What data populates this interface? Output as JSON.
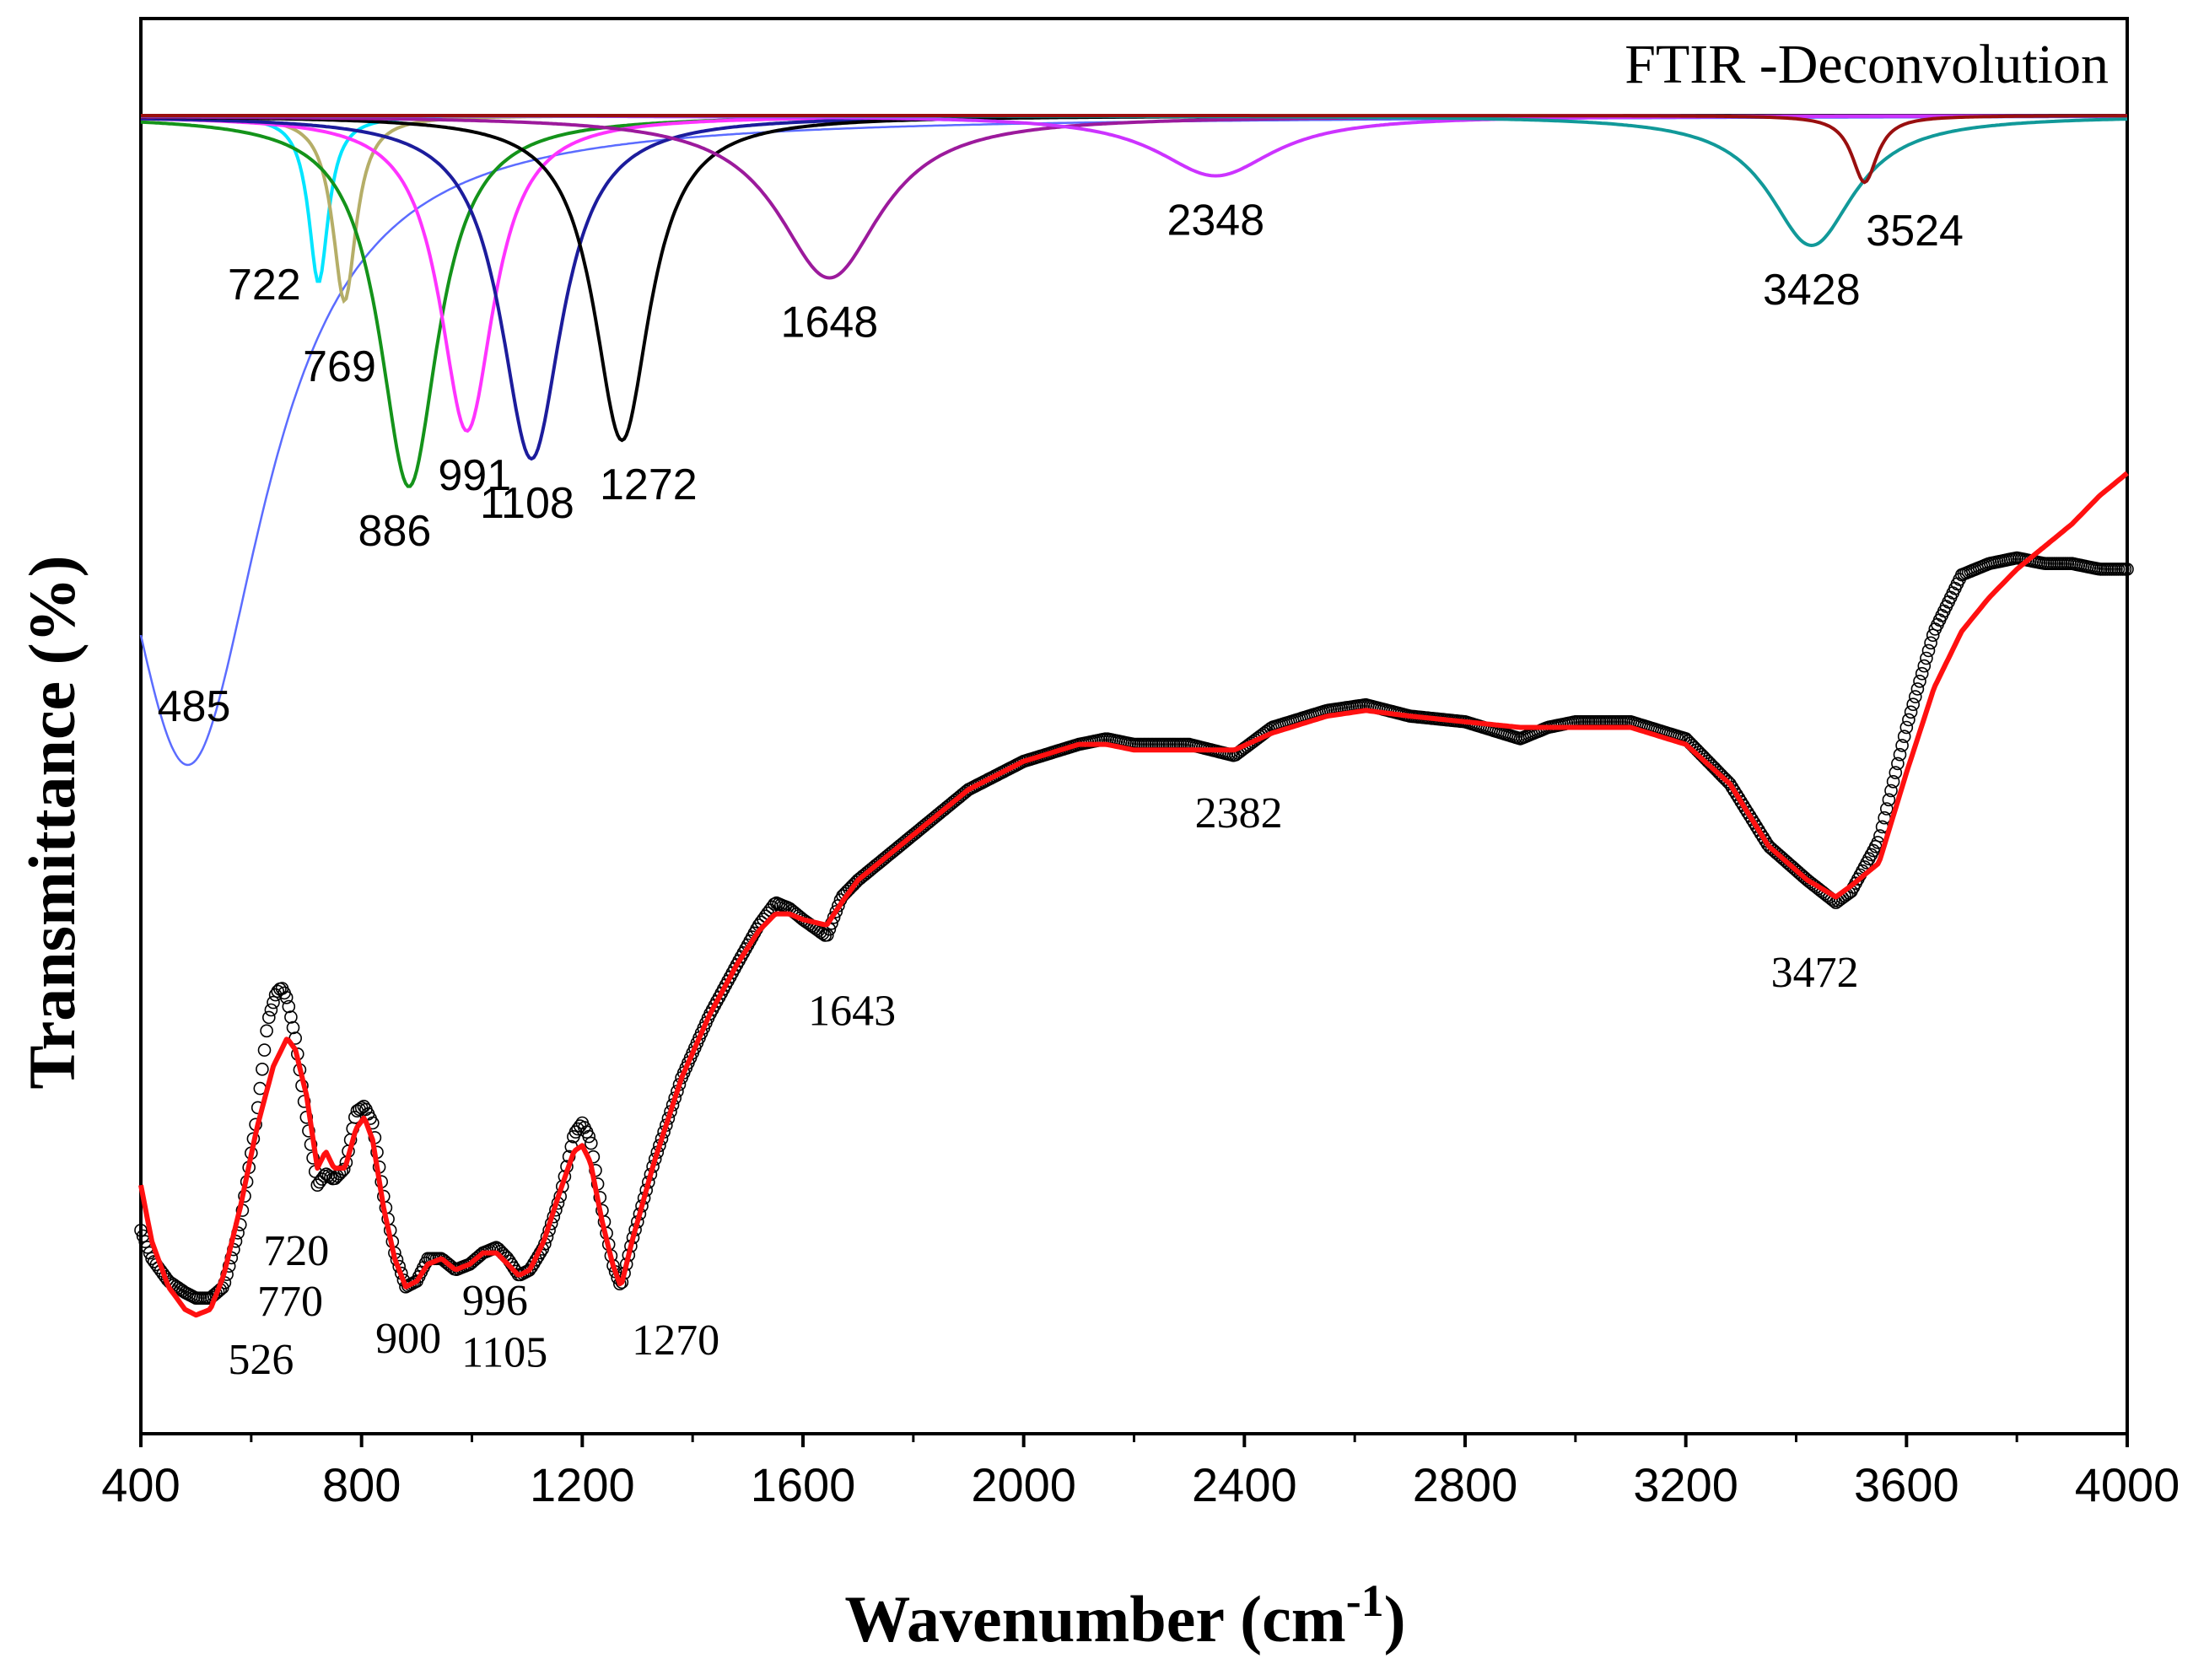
{
  "chart_data": {
    "type": "line",
    "title": "FTIR -Deconvolution",
    "xlabel": "Wavenumber (cm",
    "xlabel_sup": "-1",
    "xlabel_end": ")",
    "ylabel": "Transmittance (%)",
    "xlim": [
      400,
      4000
    ],
    "x_ticks": [
      "400",
      "800",
      "1200",
      "1600",
      "2000",
      "2400",
      "2800",
      "3200",
      "3600",
      "4000"
    ],
    "y_ticks_labeled": false,
    "grid": false,
    "deconvolution_peaks": [
      {
        "center": 485,
        "label": "485",
        "color": "#5b6cff",
        "half_width": 170,
        "depth": 0.7,
        "label_x": 430,
        "label_anchor": "start"
      },
      {
        "center": 722,
        "label": "722",
        "color": "#00e5ff",
        "half_width": 22,
        "depth": 0.18,
        "label_x": 690,
        "label_anchor": "end"
      },
      {
        "center": 769,
        "label": "769",
        "color": "#b5ae68",
        "half_width": 26,
        "depth": 0.2,
        "label_x": 760,
        "label_anchor": "middle"
      },
      {
        "center": 886,
        "label": "886",
        "color": "#14931a",
        "half_width": 65,
        "depth": 0.4,
        "label_x": 860,
        "label_anchor": "middle"
      },
      {
        "center": 991,
        "label": "991",
        "color": "#ff33ff",
        "half_width": 60,
        "depth": 0.34,
        "label_x": 1005,
        "label_anchor": "middle"
      },
      {
        "center": 1108,
        "label": "1108",
        "color": "#1c1c9c",
        "half_width": 68,
        "depth": 0.37,
        "label_x": 1100,
        "label_anchor": "middle"
      },
      {
        "center": 1272,
        "label": "1272",
        "color": "#000000",
        "half_width": 62,
        "depth": 0.35,
        "label_x": 1320,
        "label_anchor": "middle"
      },
      {
        "center": 1648,
        "label": "1648",
        "color": "#9c1a9c",
        "half_width": 115,
        "depth": 0.175,
        "label_x": 1648,
        "label_anchor": "middle"
      },
      {
        "center": 2348,
        "label": "2348",
        "color": "#cc33ff",
        "half_width": 130,
        "depth": 0.065,
        "label_x": 2348,
        "label_anchor": "middle"
      },
      {
        "center": 3428,
        "label": "3428",
        "color": "#119999",
        "half_width": 95,
        "depth": 0.14,
        "label_x": 3428,
        "label_anchor": "middle"
      },
      {
        "center": 3524,
        "label": "3524",
        "color": "#990f0f",
        "half_width": 28,
        "depth": 0.072,
        "label_x": 3615,
        "label_anchor": "middle"
      }
    ],
    "measured_series": {
      "name": "",
      "marker": "open circle",
      "color": "#000000",
      "x": [
        400,
        420,
        450,
        480,
        500,
        526,
        550,
        580,
        610,
        630,
        645,
        655,
        665,
        680,
        700,
        720,
        735,
        750,
        770,
        790,
        805,
        820,
        840,
        860,
        880,
        900,
        920,
        945,
        970,
        996,
        1020,
        1045,
        1065,
        1085,
        1105,
        1130,
        1160,
        1185,
        1200,
        1215,
        1235,
        1255,
        1270,
        1290,
        1330,
        1380,
        1430,
        1480,
        1520,
        1550,
        1575,
        1600,
        1643,
        1670,
        1700,
        1800,
        1900,
        2000,
        2100,
        2150,
        2200,
        2300,
        2382,
        2450,
        2550,
        2620,
        2700,
        2800,
        2900,
        2950,
        3000,
        3100,
        3200,
        3280,
        3350,
        3420,
        3472,
        3500,
        3550,
        3600,
        3650,
        3700,
        3750,
        3800,
        3850,
        3900,
        3950,
        4000
      ],
      "y": [
        0.66,
        0.61,
        0.57,
        0.55,
        0.54,
        0.54,
        0.56,
        0.67,
        0.86,
        1.03,
        1.08,
        1.09,
        1.07,
        1.0,
        0.86,
        0.74,
        0.76,
        0.75,
        0.77,
        0.87,
        0.88,
        0.85,
        0.72,
        0.62,
        0.56,
        0.57,
        0.61,
        0.61,
        0.59,
        0.6,
        0.62,
        0.63,
        0.61,
        0.58,
        0.59,
        0.63,
        0.72,
        0.83,
        0.85,
        0.82,
        0.7,
        0.6,
        0.56,
        0.64,
        0.78,
        0.93,
        1.04,
        1.13,
        1.2,
        1.24,
        1.23,
        1.21,
        1.18,
        1.25,
        1.28,
        1.36,
        1.44,
        1.49,
        1.52,
        1.53,
        1.52,
        1.52,
        1.5,
        1.55,
        1.58,
        1.59,
        1.57,
        1.56,
        1.53,
        1.55,
        1.56,
        1.56,
        1.53,
        1.45,
        1.34,
        1.28,
        1.24,
        1.26,
        1.35,
        1.55,
        1.72,
        1.82,
        1.84,
        1.85,
        1.84,
        1.84,
        1.83,
        1.83
      ]
    },
    "fit_series": {
      "name": "",
      "color": "#ff1010",
      "x": [
        400,
        420,
        450,
        480,
        500,
        526,
        550,
        580,
        610,
        640,
        665,
        680,
        700,
        720,
        735,
        750,
        770,
        790,
        805,
        820,
        840,
        860,
        880,
        900,
        920,
        945,
        970,
        996,
        1020,
        1045,
        1065,
        1085,
        1105,
        1130,
        1160,
        1185,
        1200,
        1215,
        1235,
        1255,
        1270,
        1290,
        1330,
        1380,
        1430,
        1480,
        1520,
        1550,
        1575,
        1600,
        1643,
        1670,
        1700,
        1800,
        1900,
        2000,
        2100,
        2150,
        2200,
        2300,
        2382,
        2450,
        2550,
        2620,
        2700,
        2800,
        2900,
        2950,
        3000,
        3100,
        3200,
        3280,
        3350,
        3420,
        3472,
        3500,
        3550,
        3600,
        3650,
        3700,
        3750,
        3800,
        3850,
        3900,
        3950,
        4000
      ],
      "y": [
        0.74,
        0.64,
        0.56,
        0.52,
        0.51,
        0.52,
        0.58,
        0.7,
        0.84,
        0.95,
        1.0,
        0.98,
        0.9,
        0.77,
        0.8,
        0.77,
        0.77,
        0.84,
        0.86,
        0.82,
        0.7,
        0.61,
        0.56,
        0.57,
        0.6,
        0.61,
        0.59,
        0.6,
        0.62,
        0.62,
        0.6,
        0.58,
        0.59,
        0.64,
        0.73,
        0.8,
        0.81,
        0.78,
        0.68,
        0.6,
        0.56,
        0.64,
        0.78,
        0.93,
        1.04,
        1.13,
        1.19,
        1.22,
        1.22,
        1.21,
        1.2,
        1.24,
        1.28,
        1.36,
        1.44,
        1.49,
        1.52,
        1.52,
        1.51,
        1.51,
        1.51,
        1.54,
        1.57,
        1.58,
        1.57,
        1.56,
        1.55,
        1.55,
        1.55,
        1.55,
        1.52,
        1.45,
        1.34,
        1.28,
        1.25,
        1.27,
        1.31,
        1.47,
        1.62,
        1.72,
        1.78,
        1.83,
        1.87,
        1.91,
        1.96,
        2.0
      ]
    },
    "measured_annotations": [
      {
        "x": 526,
        "y": 0.54,
        "label": "526"
      },
      {
        "x": 720,
        "y": 0.74,
        "label": "720"
      },
      {
        "x": 770,
        "y": 0.77,
        "label": "770"
      },
      {
        "x": 900,
        "y": 0.57,
        "label": "900"
      },
      {
        "x": 996,
        "y": 0.6,
        "label": "996"
      },
      {
        "x": 1105,
        "y": 0.59,
        "label": "1105"
      },
      {
        "x": 1270,
        "y": 0.56,
        "label": "1270"
      },
      {
        "x": 1643,
        "y": 1.18,
        "label": "1643"
      },
      {
        "x": 2382,
        "y": 1.5,
        "label": "2382"
      },
      {
        "x": 3472,
        "y": 1.24,
        "label": "3472"
      }
    ]
  }
}
